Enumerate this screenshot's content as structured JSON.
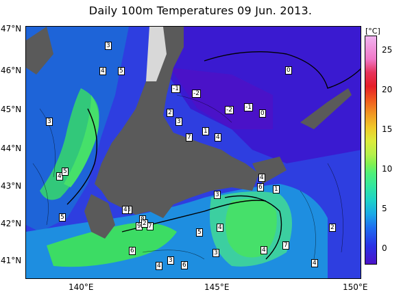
{
  "title": "Daily 100m Temperatures 09 Jun. 2013.",
  "lat_labels": [
    "47°N",
    "46°N",
    "45°N",
    "44°N",
    "43°N",
    "42°N",
    "41°N"
  ],
  "lon_labels": [
    "140°E",
    "145°E",
    "150°E"
  ],
  "colorbar": {
    "unit": "[°C]",
    "ticks": [
      "25",
      "20",
      "15",
      "10",
      "5",
      "0"
    ]
  },
  "contour_labels": [
    "3",
    "4",
    "5",
    "-1",
    "-2",
    "0",
    "-2",
    "-1",
    "0",
    "2",
    "3",
    "1",
    "4",
    "7",
    "3",
    "4",
    "5",
    "6",
    "1",
    "4",
    "3",
    "3",
    "8",
    "9",
    "7",
    "2",
    "5",
    "4",
    "5",
    "3",
    "6",
    "4",
    "4",
    "7",
    "2",
    "4",
    "6",
    "4",
    "3"
  ],
  "colors": {
    "land": "#5a5a5a",
    "ice_mask": "#d8d8d8",
    "cold": "#3218d2",
    "warm": "#3cdc64"
  }
}
